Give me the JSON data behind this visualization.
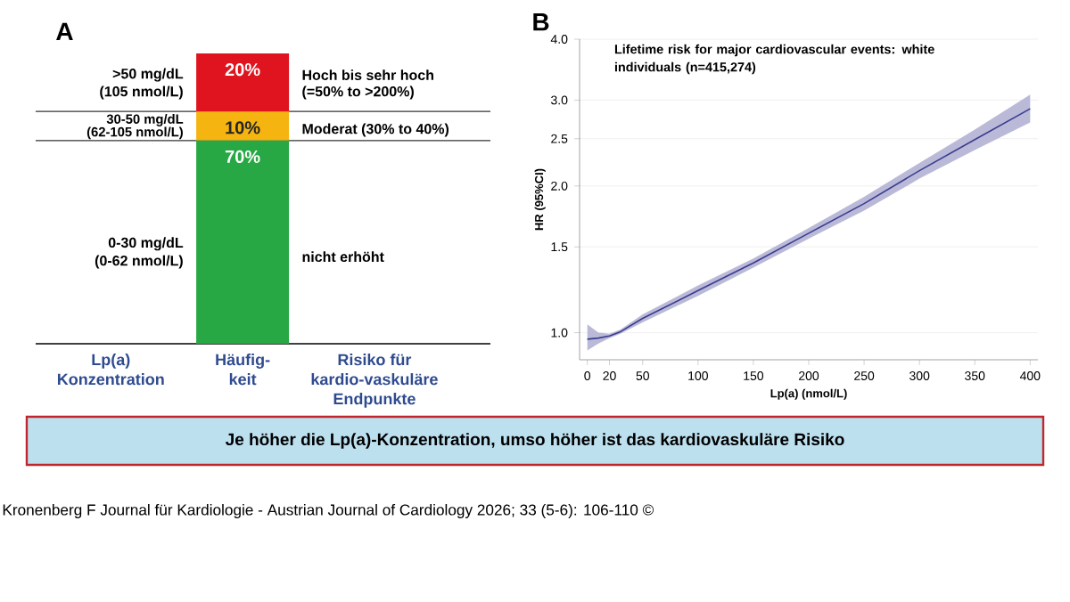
{
  "chart_data": [
    {
      "type": "bar",
      "stacked": true,
      "title": "A",
      "categories": [
        "Lp(a) Konzentration",
        "Häufig-keit",
        "Risiko für kardio-vaskuläre Endpunkte"
      ],
      "series": [
        {
          "color": "#27a844",
          "values": [
            null,
            70,
            null
          ],
          "value_labels": [
            null,
            "70%",
            null
          ]
        },
        {
          "color": "#f5b410",
          "values": [
            null,
            10,
            null
          ],
          "value_labels": [
            null,
            "10%",
            null
          ]
        },
        {
          "color": "#e0141e",
          "values": [
            null,
            20,
            null
          ],
          "value_labels": [
            null,
            "20%",
            null
          ]
        }
      ],
      "ref_lines": [
        {
          "axis": "y",
          "value": 70
        },
        {
          "axis": "y",
          "value": 80
        }
      ],
      "annotations": [
        ">50 mg/dL",
        "(105 nmol/L)",
        "30-50 mg/dL",
        "(62-105 nmol/L)",
        "0-30 mg/dL",
        "(0-62 nmol/L)",
        "Hoch bis sehr hoch",
        "(=50% to >200%)",
        "Moderat (30% to 40%)",
        "nicht erhöht",
        "Je höher die Lp(a)-Konzentration, umso höher ist das kardiovaskuläre Risiko",
        "Kronenberg F Journal für Kardiologie - Austrian Journal of Cardiology 2026; 33 (5-6): 106-110 ©"
      ]
    },
    {
      "type": "line",
      "title": "B",
      "subtitle": "Lifetime risk for major cardiovascular events: white individuals (n=415,274)",
      "xlabel": "Lp(a) (nmol/L)",
      "ylabel": "HR (95%CI)",
      "log": "y",
      "grid": "y",
      "x": [
        0,
        10,
        20,
        30,
        50,
        100,
        150,
        200,
        250,
        300,
        350,
        400
      ],
      "xlim": [
        -7,
        407
      ],
      "xticks": [
        0,
        20,
        50,
        100,
        150,
        200,
        250,
        300,
        350,
        400
      ],
      "ylim": [
        0.88,
        4.0
      ],
      "yticks": [
        {
          "value": 1,
          "label": "1.0"
        },
        1.5,
        {
          "value": 2,
          "label": "2.0"
        },
        2.5,
        {
          "value": 3,
          "label": "3.0"
        },
        {
          "value": 4,
          "label": "4.0"
        }
      ],
      "series": [
        {
          "color": "#3b3b8f",
          "values": [
            0.97,
            0.975,
            0.985,
            1.005,
            1.07,
            1.22,
            1.39,
            1.6,
            1.84,
            2.15,
            2.49,
            2.88
          ],
          "lower": [
            0.92,
            0.95,
            0.975,
            0.995,
            1.05,
            1.19,
            1.36,
            1.56,
            1.78,
            2.07,
            2.37,
            2.7
          ],
          "upper": [
            1.04,
            1.0,
            0.995,
            1.015,
            1.09,
            1.25,
            1.42,
            1.64,
            1.9,
            2.23,
            2.61,
            3.08
          ]
        }
      ]
    }
  ]
}
